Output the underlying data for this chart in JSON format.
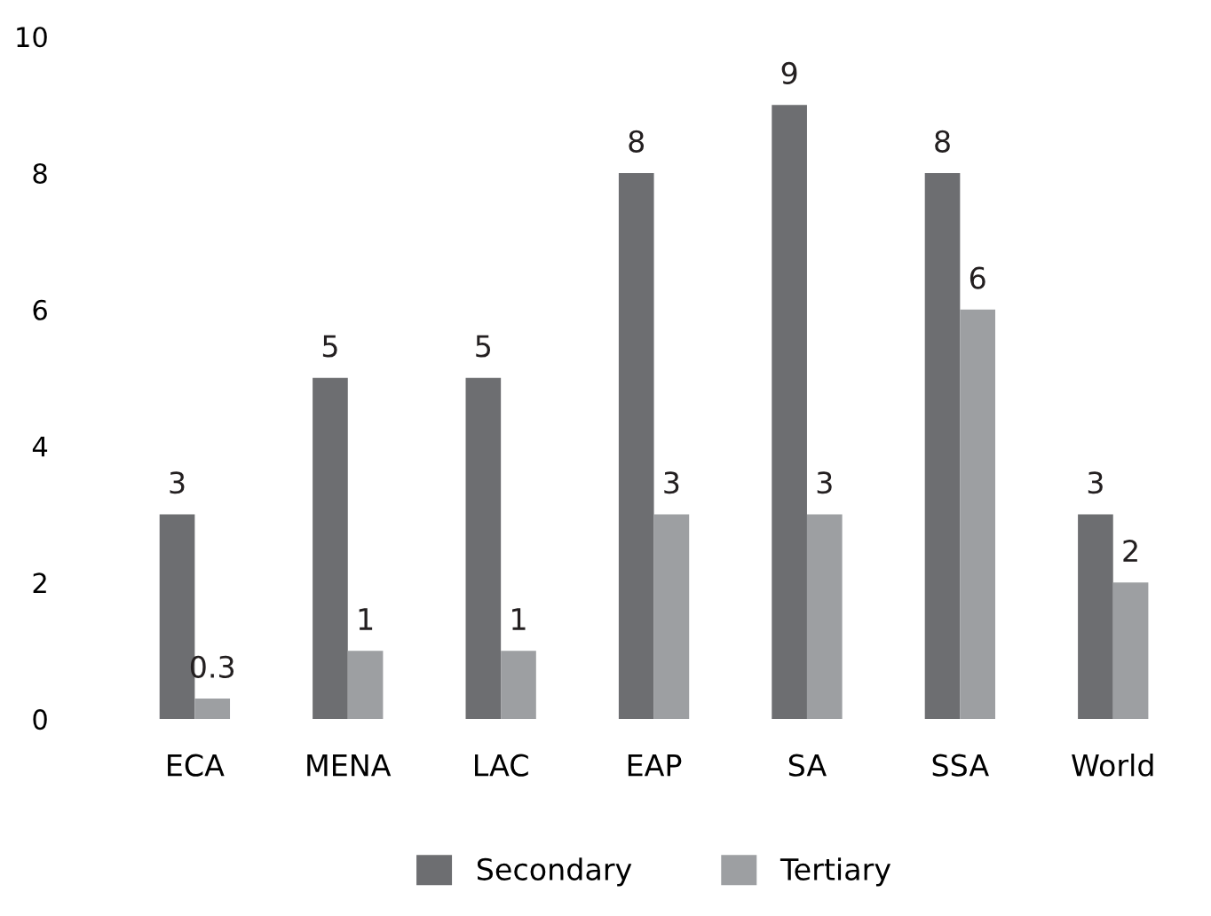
{
  "chart_data": {
    "type": "bar",
    "categories": [
      "ECA",
      "MENA",
      "LAC",
      "EAP",
      "SA",
      "SSA",
      "World"
    ],
    "series": [
      {
        "name": "Secondary",
        "color": "#6d6e71",
        "values": [
          3,
          5,
          5,
          8,
          9,
          8,
          3
        ]
      },
      {
        "name": "Tertiary",
        "color": "#9d9fa2",
        "values": [
          0.3,
          1,
          1,
          3,
          3,
          6,
          2
        ]
      }
    ],
    "ylim": [
      0,
      10
    ],
    "yticks": [
      0,
      2,
      4,
      6,
      8,
      10
    ],
    "data_labels": true,
    "grid": false,
    "legend": "bottom"
  }
}
